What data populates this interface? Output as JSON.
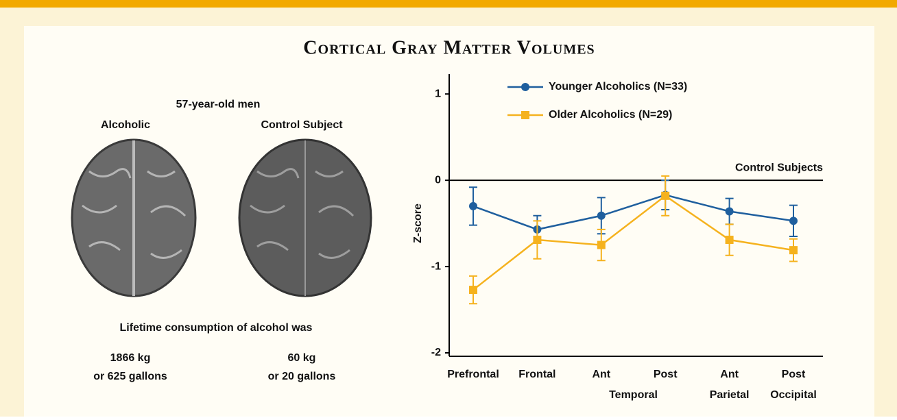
{
  "chart_data": {
    "type": "line",
    "title": "Cortical Gray Matter Volumes",
    "figure_text": {
      "subject": "57-year-old men",
      "left_label": "Alcoholic",
      "right_label": "Control Subject",
      "consumption_heading": "Lifetime consumption of alcohol was",
      "left_amount": [
        "1866 kg",
        "or 625 gallons"
      ],
      "right_amount": [
        "60 kg",
        "or 20 gallons"
      ]
    },
    "y_label": "Z-score",
    "categories": [
      "Prefrontal",
      "Frontal",
      "Ant",
      "Post",
      "Ant",
      "Post"
    ],
    "category_groups": [
      {
        "label": "Temporal",
        "from": 2,
        "to": 3
      },
      {
        "label": "Parietal",
        "from": 4,
        "to": 4
      },
      {
        "label": "Occipital",
        "from": 5,
        "to": 5
      }
    ],
    "series": [
      {
        "name": "Younger Alcoholics (N=33)",
        "color": "#1f5f9e",
        "marker": "circle",
        "values": [
          -0.3,
          -0.57,
          -0.41,
          -0.17,
          -0.36,
          -0.47
        ],
        "errors": [
          0.22,
          0.16,
          0.21,
          0.17,
          0.15,
          0.18
        ]
      },
      {
        "name": "Older Alcoholics (N=29)",
        "color": "#f5b21e",
        "marker": "square",
        "values": [
          -1.27,
          -0.69,
          -0.75,
          -0.18,
          -0.69,
          -0.81
        ],
        "errors": [
          0.16,
          0.22,
          0.18,
          0.23,
          0.18,
          0.13
        ]
      }
    ],
    "reference_line": {
      "value": 0,
      "label": "Control Subjects"
    },
    "ylim": [
      -2,
      1.2
    ],
    "yticks": [
      1,
      0,
      -1,
      -2
    ]
  }
}
